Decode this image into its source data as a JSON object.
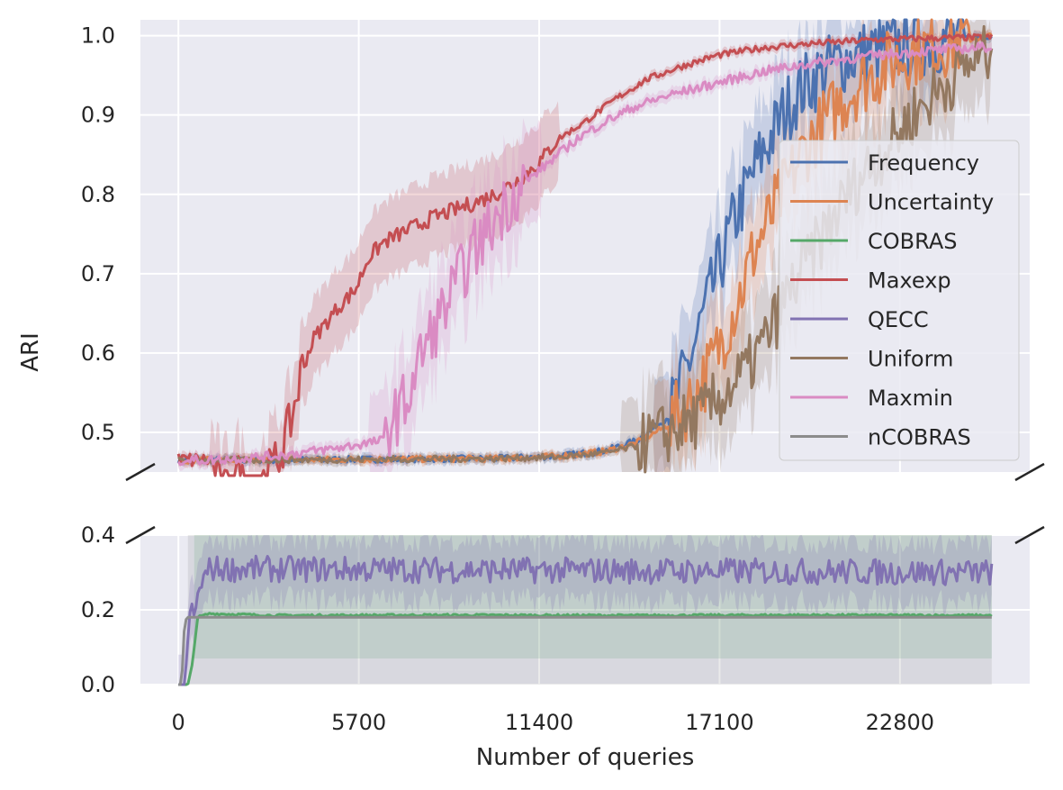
{
  "chart_data": {
    "type": "line",
    "title": "",
    "xlabel": "Number of queries",
    "ylabel": "ARI",
    "xlim": [
      -1200,
      26900
    ],
    "x_ticks": [
      0,
      5700,
      11400,
      17100,
      22800
    ],
    "x_tick_labels": [
      "0",
      "5700",
      "11400",
      "17100",
      "22800"
    ],
    "broken_y_axis": true,
    "upper_panel": {
      "ylim": [
        0.45,
        1.02
      ],
      "ticks": [
        0.5,
        0.6,
        0.7,
        0.8,
        0.9,
        1.0
      ],
      "tick_labels": [
        "0.5",
        "0.6",
        "0.7",
        "0.8",
        "0.9",
        "1.0"
      ]
    },
    "lower_panel": {
      "ylim": [
        0.0,
        0.4
      ],
      "ticks": [
        0.0,
        0.2,
        0.4
      ],
      "tick_labels": [
        "0.0",
        "0.2",
        "0.4"
      ]
    },
    "grid": true,
    "legend_position": "center-right",
    "series": [
      {
        "name": "Frequency",
        "color": "#4c72b0",
        "x": [
          0,
          2000,
          6000,
          10000,
          12000,
          13500,
          14500,
          15500,
          15900,
          16300,
          16700,
          17100,
          17500,
          17900,
          18300,
          18700,
          19100,
          19600,
          20200,
          21000,
          22000,
          23000,
          24000,
          25000,
          25700
        ],
        "y": [
          0.465,
          0.465,
          0.466,
          0.467,
          0.47,
          0.477,
          0.49,
          0.52,
          0.56,
          0.61,
          0.66,
          0.71,
          0.76,
          0.8,
          0.84,
          0.87,
          0.9,
          0.93,
          0.95,
          0.97,
          0.98,
          0.99,
          0.995,
          0.998,
          1.0
        ]
      },
      {
        "name": "Uncertainty",
        "color": "#dd8452",
        "x": [
          0,
          2000,
          6000,
          10000,
          12000,
          13500,
          14500,
          15500,
          16200,
          16800,
          17300,
          17800,
          18200,
          18700,
          19200,
          19700,
          20200,
          20800,
          21500,
          22300,
          23200,
          24200,
          25700
        ],
        "y": [
          0.465,
          0.465,
          0.466,
          0.467,
          0.47,
          0.476,
          0.487,
          0.51,
          0.54,
          0.58,
          0.63,
          0.68,
          0.73,
          0.77,
          0.81,
          0.85,
          0.88,
          0.91,
          0.94,
          0.96,
          0.98,
          0.99,
          1.0
        ]
      },
      {
        "name": "COBRAS",
        "color": "#55a868",
        "x": [
          0,
          200,
          300,
          450,
          600,
          1000,
          3000,
          8000,
          14000,
          20000,
          25700
        ],
        "y": [
          0.0,
          0.0,
          0.0,
          0.06,
          0.18,
          0.19,
          0.185,
          0.186,
          0.185,
          0.186,
          0.185
        ]
      },
      {
        "name": "Maxexp",
        "color": "#c44e52",
        "x": [
          0,
          1000,
          1400,
          1800,
          2300,
          2700,
          3200,
          3600,
          3900,
          4300,
          4700,
          5100,
          5600,
          6000,
          6500,
          7000,
          7500,
          8000,
          8700,
          9400,
          10000,
          10800,
          11400,
          12000,
          12800,
          13800,
          14800,
          15800,
          17000,
          18500,
          20000,
          22000,
          24000,
          25700
        ],
        "y": [
          0.465,
          0.465,
          0.42,
          0.45,
          0.42,
          0.44,
          0.47,
          0.52,
          0.58,
          0.62,
          0.64,
          0.66,
          0.68,
          0.72,
          0.74,
          0.75,
          0.76,
          0.77,
          0.78,
          0.79,
          0.8,
          0.82,
          0.84,
          0.87,
          0.89,
          0.92,
          0.945,
          0.96,
          0.975,
          0.985,
          0.99,
          0.995,
          0.997,
          0.998
        ]
      },
      {
        "name": "QECC",
        "color": "#8172b2",
        "x": [
          0,
          200,
          300,
          400,
          500,
          700,
          1000,
          25700
        ],
        "y": [
          0.0,
          0.0,
          0.12,
          0.23,
          0.18,
          0.27,
          0.31,
          0.3
        ]
      },
      {
        "name": "Uniform",
        "color": "#937860",
        "x": [
          0,
          2000,
          6000,
          10000,
          12000,
          13500,
          14500,
          15500,
          16500,
          17300,
          18000,
          18600,
          19200,
          19800,
          20400,
          21000,
          21700,
          22400,
          23200,
          24000,
          24800,
          25700
        ],
        "y": [
          0.465,
          0.465,
          0.466,
          0.467,
          0.469,
          0.474,
          0.483,
          0.5,
          0.52,
          0.55,
          0.58,
          0.62,
          0.67,
          0.71,
          0.75,
          0.79,
          0.83,
          0.86,
          0.9,
          0.93,
          0.96,
          0.98
        ]
      },
      {
        "name": "Maxmin",
        "color": "#da8bc3",
        "x": [
          0,
          1000,
          3000,
          5000,
          6500,
          6500,
          7200,
          7700,
          8200,
          8700,
          9200,
          9700,
          10200,
          10800,
          11400,
          12000,
          12600,
          13400,
          14400,
          15500,
          17000,
          18500,
          20000,
          22000,
          24000,
          25700
        ],
        "y": [
          0.465,
          0.465,
          0.47,
          0.48,
          0.49,
          0.5,
          0.54,
          0.6,
          0.64,
          0.68,
          0.72,
          0.75,
          0.78,
          0.81,
          0.83,
          0.85,
          0.87,
          0.89,
          0.91,
          0.925,
          0.94,
          0.955,
          0.965,
          0.975,
          0.982,
          0.986
        ]
      },
      {
        "name": "nCOBRAS",
        "color": "#8c8c8c",
        "x": [
          0,
          100,
          200,
          300,
          500,
          2000,
          25700
        ],
        "y": [
          0.0,
          0.0,
          0.17,
          0.18,
          0.18,
          0.18,
          0.18
        ]
      }
    ]
  }
}
